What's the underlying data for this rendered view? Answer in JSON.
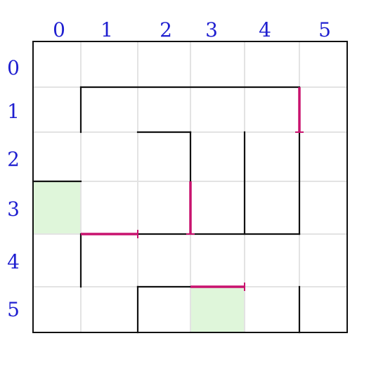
{
  "puzzle": {
    "type": "grid-maze",
    "rows": 6,
    "cols": 6,
    "column_labels": [
      "0",
      "1",
      "2",
      "3",
      "4",
      "5"
    ],
    "row_labels": [
      "0",
      "1",
      "2",
      "3",
      "4",
      "5"
    ],
    "highlighted_cells": [
      {
        "row": 3,
        "col": 0
      },
      {
        "row": 5,
        "col": 3
      }
    ],
    "walls": [
      {
        "from": [
          1,
          1
        ],
        "to": [
          1,
          5
        ]
      },
      {
        "from": [
          1,
          1
        ],
        "to": [
          2,
          1
        ]
      },
      {
        "from": [
          2,
          2
        ],
        "to": [
          2,
          3
        ]
      },
      {
        "from": [
          2,
          3
        ],
        "to": [
          3,
          3
        ]
      },
      {
        "from": [
          2,
          4
        ],
        "to": [
          4,
          4
        ]
      },
      {
        "from": [
          2,
          5
        ],
        "to": [
          4,
          5
        ]
      },
      {
        "from": [
          3,
          0
        ],
        "to": [
          3,
          1
        ]
      },
      {
        "from": [
          4,
          1
        ],
        "to": [
          5,
          1
        ]
      },
      {
        "from": [
          4,
          2
        ],
        "to": [
          4,
          5
        ]
      },
      {
        "from": [
          5,
          2
        ],
        "to": [
          6,
          2
        ]
      },
      {
        "from": [
          5,
          2
        ],
        "to": [
          5,
          3
        ]
      },
      {
        "from": [
          5,
          5
        ],
        "to": [
          6,
          5
        ]
      }
    ],
    "marked_segments": [
      {
        "from": [
          1,
          5
        ],
        "to": [
          2,
          5
        ]
      },
      {
        "from": [
          3,
          3
        ],
        "to": [
          4,
          3
        ]
      },
      {
        "from": [
          4,
          1
        ],
        "to": [
          4,
          2
        ]
      },
      {
        "from": [
          5,
          3
        ],
        "to": [
          5,
          4
        ]
      }
    ],
    "colors": {
      "wall": "#111111",
      "marked": "#c8126e",
      "highlight": "#dff6da",
      "grid": "#e3e3e3",
      "label": "#1f1fd0",
      "border": "#111111"
    }
  }
}
